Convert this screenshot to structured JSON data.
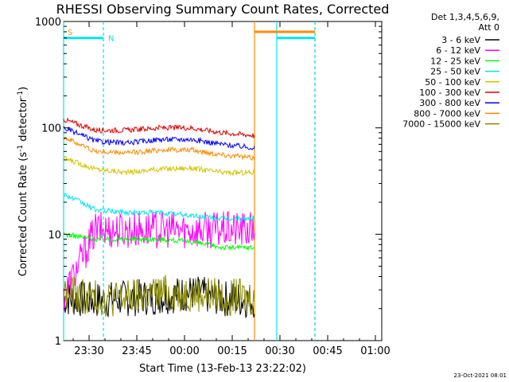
{
  "chart_data": {
    "type": "line",
    "title": "RHESSI Observing Summary Count Rates, Corrected",
    "xlabel": "Start Time (13-Feb-13 23:22:02)",
    "ylabel_main": "Corrected Count Rate (s",
    "ylabel_sup1": "-1",
    "ylabel_mid": " detector",
    "ylabel_sup2": "-1",
    "ylabel_end": ")",
    "y_scale": "log",
    "ylim": [
      1,
      1000
    ],
    "xlim_minutes": [
      0,
      100
    ],
    "x_ticks": [
      {
        "label": "23:30",
        "min": 8
      },
      {
        "label": "23:45",
        "min": 23
      },
      {
        "label": "00:00",
        "min": 38
      },
      {
        "label": "00:15",
        "min": 53
      },
      {
        "label": "00:30",
        "min": 68
      },
      {
        "label": "00:45",
        "min": 83
      },
      {
        "label": "01:00",
        "min": 98
      }
    ],
    "y_ticks": [
      {
        "label": "1",
        "value": 1
      },
      {
        "label": "10",
        "value": 10
      },
      {
        "label": "100",
        "value": 100
      },
      {
        "label": "1000",
        "value": 1000
      }
    ],
    "legend_header": [
      "Det 1,3,4,5,6,9,",
      "Att 0"
    ],
    "legend_position": "right",
    "flags": [
      {
        "label": "S",
        "color": "#ff8c00"
      },
      {
        "label": "N",
        "color": "#00e5ee"
      }
    ],
    "flag_bars": [
      {
        "color": "#00e5ee",
        "start": 0,
        "end": 12.5,
        "value": 700
      },
      {
        "color": "#ff8c00",
        "start": 60,
        "end": 79,
        "value": 800
      },
      {
        "color": "#00e5ee",
        "start": 67,
        "end": 79,
        "value": 700
      }
    ],
    "vlines": [
      {
        "color": "#00e5ee",
        "min": 0,
        "dashed": false
      },
      {
        "color": "#00e5ee",
        "min": 12.5,
        "dashed": true
      },
      {
        "color": "#ff8c00",
        "min": 60,
        "dashed": false
      },
      {
        "color": "#00e5ee",
        "min": 67,
        "dashed": false
      },
      {
        "color": "#ff8c00",
        "min": 79,
        "dashed": true
      },
      {
        "color": "#00e5ee",
        "min": 79,
        "dashed": true
      }
    ],
    "series": [
      {
        "name": "3 - 6 keV",
        "color": "#000000",
        "x": [
          0,
          10,
          20,
          30,
          40,
          50,
          60
        ],
        "values": [
          2.5,
          2.4,
          2.5,
          2.6,
          2.8,
          2.5,
          2.4
        ]
      },
      {
        "name": "6 - 12 keV",
        "color": "#ff00ff",
        "x": [
          0,
          10,
          20,
          30,
          40,
          50,
          60
        ],
        "values": [
          2.6,
          11,
          11,
          11,
          11,
          11,
          11
        ]
      },
      {
        "name": "12 - 25 keV",
        "color": "#00ff00",
        "x": [
          0,
          10,
          20,
          30,
          40,
          50,
          60
        ],
        "values": [
          10,
          9,
          9,
          9,
          8.5,
          7.5,
          7.5
        ]
      },
      {
        "name": "25 - 50 keV",
        "color": "#00e5ee",
        "x": [
          0,
          10,
          20,
          30,
          40,
          50,
          60
        ],
        "values": [
          24,
          17,
          16,
          16,
          15,
          14,
          14
        ]
      },
      {
        "name": "50 - 100 keV",
        "color": "#d4c400",
        "x": [
          0,
          10,
          20,
          30,
          40,
          50,
          60
        ],
        "values": [
          52,
          41,
          38,
          41,
          42,
          38,
          38
        ]
      },
      {
        "name": "100 - 300 keV",
        "color": "#e00000",
        "x": [
          0,
          10,
          20,
          30,
          40,
          50,
          60
        ],
        "values": [
          120,
          95,
          95,
          100,
          100,
          90,
          85
        ]
      },
      {
        "name": "300 - 800 keV",
        "color": "#0000ff",
        "x": [
          0,
          10,
          20,
          30,
          40,
          50,
          60
        ],
        "values": [
          100,
          75,
          72,
          78,
          78,
          70,
          65
        ]
      },
      {
        "name": "800 - 7000 keV",
        "color": "#ff8c00",
        "x": [
          0,
          10,
          20,
          30,
          40,
          50,
          60
        ],
        "values": [
          82,
          60,
          58,
          62,
          62,
          56,
          52
        ]
      },
      {
        "name": "7000 - 15000 keV",
        "color": "#8b8b00",
        "x": [
          0,
          10,
          20,
          30,
          40,
          50,
          60
        ],
        "values": [
          2.8,
          2.5,
          2.5,
          2.8,
          2.8,
          2.6,
          2.5
        ]
      }
    ]
  },
  "footer": {
    "timestamp": "23-Oct-2021 08:01"
  }
}
